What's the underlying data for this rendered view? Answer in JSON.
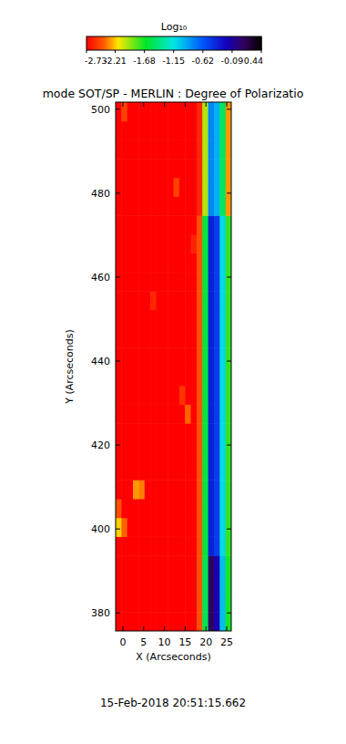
{
  "chart_data": {
    "type": "heatmap",
    "title": "mode SOT/SP - MERLIN : Degree of Polarizatio",
    "xlabel": "X (Arcseconds)",
    "ylabel": "Y (Arcseconds)",
    "annotation": "15-Feb-2018 20:51:15.662",
    "xlim": [
      -1.75,
      26.1
    ],
    "ylim": [
      375.7,
      501.7
    ],
    "xticks": [
      0,
      5,
      10,
      15,
      20,
      25
    ],
    "yticks": [
      380,
      400,
      420,
      440,
      460,
      480,
      500
    ],
    "x": [
      -1.05,
      0.34,
      1.73,
      3.12,
      4.52,
      5.91,
      7.3,
      8.7,
      10.09,
      11.48,
      12.88,
      14.27,
      15.66,
      17.05,
      18.45,
      19.84,
      21.23,
      22.63,
      24.02,
      25.41
    ],
    "y": [
      377.95,
      382.45,
      386.95,
      391.45,
      395.95,
      400.45,
      404.95,
      409.45,
      413.95,
      418.45,
      422.95,
      427.45,
      431.95,
      436.45,
      440.95,
      445.45,
      449.95,
      454.45,
      458.95,
      463.45,
      467.95,
      472.45,
      476.95,
      481.45,
      485.95,
      490.45,
      494.95,
      499.45
    ],
    "values": [
      [
        -2.73,
        -2.73,
        -2.73,
        -2.73,
        -2.73,
        -2.73,
        -2.73,
        -2.73,
        -2.73,
        -2.73,
        -2.73,
        -2.73,
        -2.73,
        -2.73,
        -2.45,
        -1.55,
        0.1,
        -0.15,
        -1.0,
        -1.7
      ],
      [
        -2.73,
        -2.73,
        -2.73,
        -2.73,
        -2.73,
        -2.73,
        -2.73,
        -2.73,
        -2.73,
        -2.73,
        -2.73,
        -2.73,
        -2.73,
        -2.73,
        -2.45,
        -1.55,
        0.1,
        -0.15,
        -1.0,
        -1.7
      ],
      [
        -2.73,
        -2.73,
        -2.73,
        -2.73,
        -2.73,
        -2.73,
        -2.73,
        -2.73,
        -2.73,
        -2.73,
        -2.73,
        -2.73,
        -2.73,
        -2.73,
        -2.45,
        -1.55,
        0.1,
        -0.15,
        -1.0,
        -1.7
      ],
      [
        -2.73,
        -2.73,
        -2.73,
        -2.73,
        -2.73,
        -2.73,
        -2.73,
        -2.73,
        -2.73,
        -2.73,
        -2.73,
        -2.73,
        -2.73,
        -2.73,
        -2.45,
        -1.55,
        0.1,
        -0.15,
        -1.0,
        -1.7
      ],
      [
        -2.73,
        -2.73,
        -2.73,
        -2.73,
        -2.73,
        -2.73,
        -2.73,
        -2.73,
        -2.73,
        -2.73,
        -2.73,
        -2.73,
        -2.73,
        -2.73,
        -2.45,
        -1.6,
        -0.35,
        -0.5,
        -1.1,
        -1.75
      ],
      [
        -2.2,
        -2.4,
        -2.73,
        -2.73,
        -2.73,
        -2.73,
        -2.73,
        -2.73,
        -2.73,
        -2.73,
        -2.73,
        -2.73,
        -2.73,
        -2.73,
        -2.45,
        -1.6,
        -0.35,
        -0.5,
        -1.1,
        -1.75
      ],
      [
        -2.45,
        -2.73,
        -2.73,
        -2.73,
        -2.73,
        -2.73,
        -2.73,
        -2.73,
        -2.73,
        -2.73,
        -2.73,
        -2.73,
        -2.73,
        -2.73,
        -2.45,
        -1.6,
        -0.35,
        -0.5,
        -1.1,
        -1.75
      ],
      [
        -2.73,
        -2.73,
        -2.73,
        -2.3,
        -2.35,
        -2.73,
        -2.73,
        -2.73,
        -2.73,
        -2.73,
        -2.73,
        -2.73,
        -2.73,
        -2.73,
        -2.45,
        -1.6,
        -0.35,
        -0.5,
        -1.1,
        -1.75
      ],
      [
        -2.73,
        -2.73,
        -2.73,
        -2.73,
        -2.73,
        -2.73,
        -2.73,
        -2.73,
        -2.73,
        -2.73,
        -2.73,
        -2.73,
        -2.73,
        -2.73,
        -2.45,
        -1.6,
        -0.35,
        -0.5,
        -1.1,
        -1.75
      ],
      [
        -2.73,
        -2.73,
        -2.73,
        -2.73,
        -2.73,
        -2.73,
        -2.73,
        -2.73,
        -2.73,
        -2.73,
        -2.73,
        -2.73,
        -2.73,
        -2.73,
        -2.45,
        -1.6,
        -0.35,
        -0.5,
        -1.1,
        -1.75
      ],
      [
        -2.73,
        -2.73,
        -2.73,
        -2.73,
        -2.73,
        -2.73,
        -2.73,
        -2.73,
        -2.73,
        -2.73,
        -2.73,
        -2.73,
        -2.73,
        -2.73,
        -2.45,
        -1.6,
        -0.35,
        -0.5,
        -1.1,
        -1.75
      ],
      [
        -2.73,
        -2.73,
        -2.73,
        -2.73,
        -2.73,
        -2.73,
        -2.73,
        -2.73,
        -2.73,
        -2.73,
        -2.73,
        -2.73,
        -2.4,
        -2.73,
        -2.45,
        -1.6,
        -0.35,
        -0.5,
        -1.1,
        -1.75
      ],
      [
        -2.73,
        -2.73,
        -2.73,
        -2.73,
        -2.73,
        -2.73,
        -2.73,
        -2.73,
        -2.73,
        -2.73,
        -2.73,
        -2.55,
        -2.73,
        -2.73,
        -2.45,
        -1.6,
        -0.35,
        -0.5,
        -1.1,
        -1.75
      ],
      [
        -2.73,
        -2.73,
        -2.73,
        -2.73,
        -2.73,
        -2.73,
        -2.73,
        -2.73,
        -2.73,
        -2.73,
        -2.73,
        -2.73,
        -2.73,
        -2.73,
        -2.45,
        -1.6,
        -0.35,
        -0.5,
        -1.1,
        -1.75
      ],
      [
        -2.73,
        -2.73,
        -2.73,
        -2.73,
        -2.73,
        -2.73,
        -2.73,
        -2.73,
        -2.73,
        -2.73,
        -2.73,
        -2.73,
        -2.73,
        -2.73,
        -2.45,
        -1.6,
        -0.35,
        -0.5,
        -1.1,
        -1.75
      ],
      [
        -2.73,
        -2.73,
        -2.73,
        -2.73,
        -2.73,
        -2.73,
        -2.73,
        -2.73,
        -2.73,
        -2.73,
        -2.73,
        -2.73,
        -2.73,
        -2.73,
        -2.45,
        -1.6,
        -0.35,
        -0.5,
        -1.1,
        -1.75
      ],
      [
        -2.73,
        -2.73,
        -2.73,
        -2.73,
        -2.73,
        -2.73,
        -2.73,
        -2.73,
        -2.73,
        -2.73,
        -2.73,
        -2.73,
        -2.73,
        -2.73,
        -2.45,
        -1.6,
        -0.35,
        -0.5,
        -1.1,
        -1.75
      ],
      [
        -2.73,
        -2.73,
        -2.73,
        -2.73,
        -2.73,
        -2.73,
        -2.6,
        -2.73,
        -2.73,
        -2.73,
        -2.73,
        -2.73,
        -2.73,
        -2.73,
        -2.45,
        -1.6,
        -0.35,
        -0.5,
        -1.1,
        -1.75
      ],
      [
        -2.73,
        -2.73,
        -2.73,
        -2.73,
        -2.73,
        -2.73,
        -2.73,
        -2.73,
        -2.73,
        -2.73,
        -2.73,
        -2.73,
        -2.73,
        -2.73,
        -2.45,
        -1.6,
        -0.35,
        -0.5,
        -1.1,
        -1.75
      ],
      [
        -2.73,
        -2.73,
        -2.73,
        -2.73,
        -2.73,
        -2.73,
        -2.73,
        -2.73,
        -2.73,
        -2.73,
        -2.73,
        -2.73,
        -2.73,
        -2.73,
        -2.45,
        -1.6,
        -0.35,
        -0.5,
        -1.1,
        -1.75
      ],
      [
        -2.73,
        -2.73,
        -2.73,
        -2.73,
        -2.73,
        -2.73,
        -2.73,
        -2.73,
        -2.73,
        -2.73,
        -2.73,
        -2.73,
        -2.73,
        -2.6,
        -2.45,
        -1.6,
        -0.35,
        -0.5,
        -1.1,
        -1.75
      ],
      [
        -2.73,
        -2.73,
        -2.73,
        -2.73,
        -2.73,
        -2.73,
        -2.73,
        -2.73,
        -2.73,
        -2.73,
        -2.73,
        -2.73,
        -2.73,
        -2.73,
        -2.45,
        -1.6,
        -0.35,
        -0.5,
        -1.1,
        -1.75
      ],
      [
        -2.73,
        -2.73,
        -2.73,
        -2.73,
        -2.73,
        -2.73,
        -2.73,
        -2.73,
        -2.73,
        -2.73,
        -2.73,
        -2.73,
        -2.73,
        -2.73,
        -2.6,
        -2.0,
        -0.8,
        -0.95,
        -1.5,
        -2.3
      ],
      [
        -2.73,
        -2.73,
        -2.73,
        -2.73,
        -2.73,
        -2.73,
        -2.73,
        -2.73,
        -2.73,
        -2.73,
        -2.5,
        -2.73,
        -2.73,
        -2.73,
        -2.6,
        -2.0,
        -0.8,
        -0.95,
        -1.5,
        -2.3
      ],
      [
        -2.73,
        -2.73,
        -2.73,
        -2.73,
        -2.73,
        -2.73,
        -2.73,
        -2.73,
        -2.73,
        -2.73,
        -2.73,
        -2.73,
        -2.73,
        -2.73,
        -2.6,
        -2.0,
        -0.8,
        -0.95,
        -1.5,
        -2.3
      ],
      [
        -2.73,
        -2.73,
        -2.73,
        -2.73,
        -2.73,
        -2.73,
        -2.73,
        -2.73,
        -2.73,
        -2.73,
        -2.73,
        -2.73,
        -2.73,
        -2.73,
        -2.6,
        -2.0,
        -0.8,
        -0.95,
        -1.5,
        -2.3
      ],
      [
        -2.73,
        -2.73,
        -2.73,
        -2.73,
        -2.73,
        -2.73,
        -2.73,
        -2.73,
        -2.73,
        -2.73,
        -2.73,
        -2.73,
        -2.73,
        -2.73,
        -2.6,
        -2.0,
        -0.8,
        -0.95,
        -1.5,
        -2.3
      ],
      [
        -2.73,
        -2.5,
        -2.73,
        -2.73,
        -2.73,
        -2.73,
        -2.73,
        -2.73,
        -2.73,
        -2.73,
        -2.73,
        -2.73,
        -2.73,
        -2.73,
        -2.6,
        -2.0,
        -0.8,
        -0.95,
        -1.5,
        -2.3
      ]
    ],
    "colorbar": {
      "label": "Log₁₀",
      "range": [
        -2.73,
        0.44
      ],
      "ticks": [
        -2.73,
        -2.21,
        -1.68,
        -1.15,
        -0.62,
        -0.09,
        0.44
      ]
    }
  }
}
